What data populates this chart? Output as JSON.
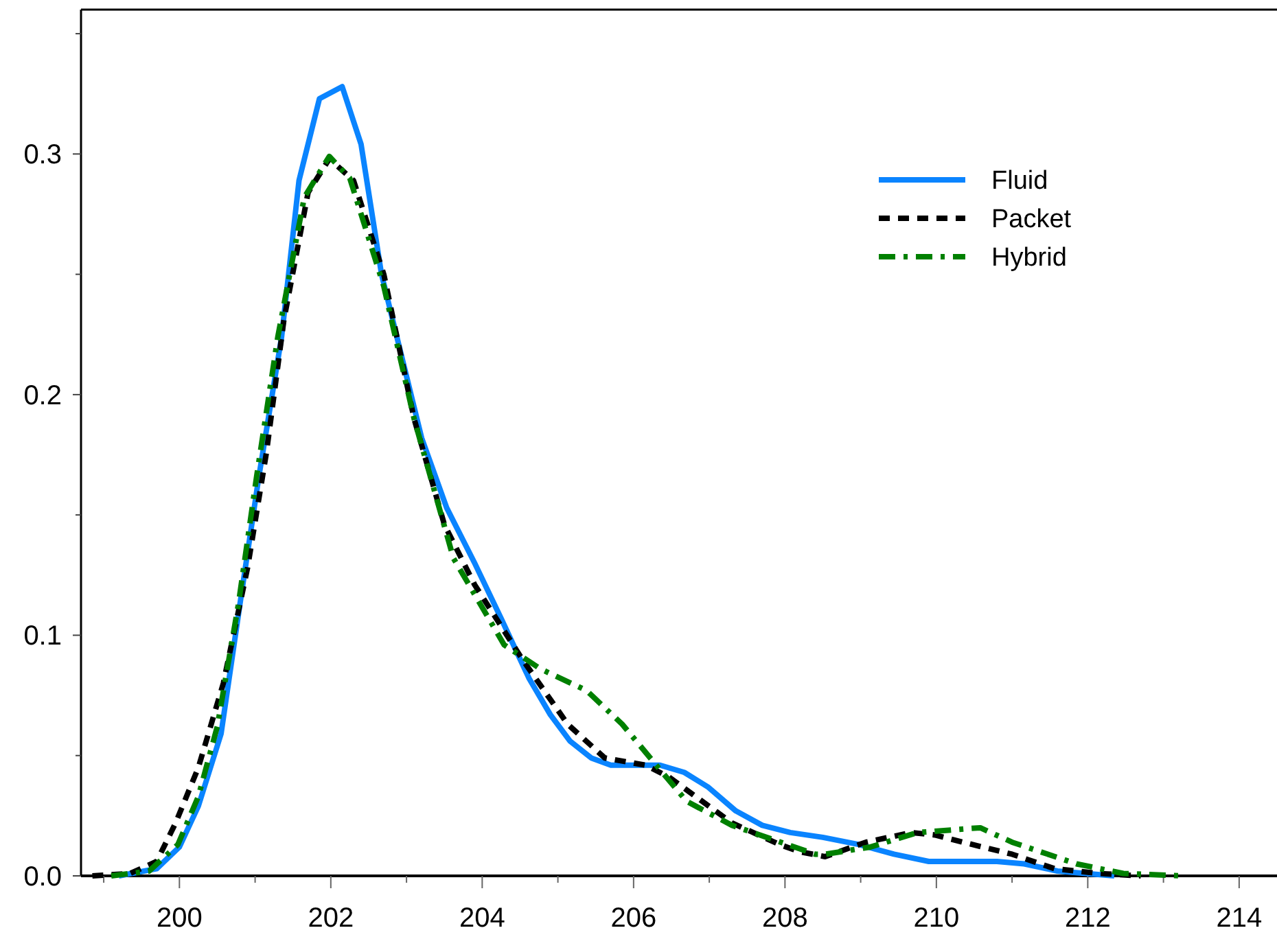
{
  "chart_data": {
    "type": "line",
    "xlim": [
      198.7,
      214.5
    ],
    "ylim": [
      0,
      0.36
    ],
    "xticks": [
      {
        "value": 199,
        "label": null
      },
      200,
      {
        "value": 201,
        "label": null
      },
      202,
      {
        "value": 203,
        "label": null
      },
      204,
      {
        "value": 205,
        "label": null
      },
      206,
      {
        "value": 207,
        "label": null
      },
      208,
      {
        "value": 209,
        "label": null
      },
      210,
      {
        "value": 211,
        "label": null
      },
      212,
      {
        "value": 213,
        "label": null
      },
      214
    ],
    "yticks": [
      {
        "value": 0,
        "label": "0.0"
      },
      {
        "value": 0.05,
        "label": null
      },
      0.1,
      {
        "value": 0.15,
        "label": null
      },
      0.2,
      {
        "value": 0.25,
        "label": null
      },
      0.3,
      {
        "value": 0.35,
        "label": null
      }
    ],
    "grid": false,
    "legend": "top right",
    "marker": "none",
    "series": [
      {
        "name": "Fluid",
        "color": "#0a84ff",
        "line_style": "solid",
        "x": [
          199.2,
          199.7,
          200.0,
          200.25,
          200.55,
          200.8,
          201.05,
          201.35,
          201.58,
          201.85,
          202.15,
          202.4,
          202.67,
          203.2,
          203.53,
          203.9,
          204.25,
          204.62,
          204.9,
          205.16,
          205.44,
          205.7,
          205.98,
          206.35,
          206.67,
          206.98,
          207.35,
          207.7,
          208.07,
          208.5,
          208.98,
          209.44,
          209.9,
          210.35,
          210.8,
          211.16,
          211.6,
          212.35
        ],
        "values": [
          0,
          0.003,
          0.012,
          0.029,
          0.059,
          0.113,
          0.166,
          0.224,
          0.289,
          0.323,
          0.328,
          0.304,
          0.25,
          0.182,
          0.153,
          0.13,
          0.107,
          0.082,
          0.067,
          0.056,
          0.049,
          0.046,
          0.046,
          0.046,
          0.043,
          0.037,
          0.027,
          0.021,
          0.018,
          0.016,
          0.013,
          0.009,
          0.006,
          0.006,
          0.006,
          0.005,
          0.002,
          0
        ]
      },
      {
        "name": "Packet",
        "color": "#000000",
        "line_style": "dashed",
        "x": [
          198.85,
          199.35,
          199.7,
          199.95,
          200.25,
          200.58,
          200.9,
          201.15,
          201.38,
          201.7,
          201.98,
          202.3,
          202.7,
          203.1,
          203.5,
          203.9,
          204.53,
          205.13,
          205.62,
          206.16,
          206.47,
          207.3,
          207.93,
          208.2,
          208.53,
          209.07,
          209.67,
          209.98,
          210.35,
          211.0,
          211.56,
          212.15,
          212.7
        ],
        "values": [
          0,
          0.001,
          0.006,
          0.022,
          0.045,
          0.08,
          0.128,
          0.176,
          0.231,
          0.284,
          0.298,
          0.289,
          0.25,
          0.19,
          0.146,
          0.121,
          0.09,
          0.063,
          0.049,
          0.046,
          0.041,
          0.022,
          0.013,
          0.01,
          0.008,
          0.014,
          0.018,
          0.017,
          0.014,
          0.009,
          0.003,
          0.001,
          0
        ]
      },
      {
        "name": "Hybrid",
        "color": "#008000",
        "line_style": "dashdot",
        "x": [
          199.1,
          199.6,
          199.98,
          200.25,
          200.5,
          200.78,
          201.02,
          201.3,
          201.65,
          201.98,
          202.25,
          202.7,
          203.1,
          203.62,
          204.29,
          204.77,
          205.38,
          205.85,
          206.3,
          206.7,
          207.3,
          208.4,
          208.53,
          209.13,
          209.75,
          210.58,
          211.0,
          211.85,
          212.47,
          213.25
        ],
        "values": [
          0,
          0.002,
          0.013,
          0.033,
          0.062,
          0.113,
          0.166,
          0.224,
          0.282,
          0.299,
          0.29,
          0.245,
          0.19,
          0.132,
          0.096,
          0.086,
          0.077,
          0.063,
          0.046,
          0.031,
          0.021,
          0.009,
          0.009,
          0.012,
          0.018,
          0.02,
          0.014,
          0.005,
          0.001,
          0
        ]
      }
    ]
  }
}
